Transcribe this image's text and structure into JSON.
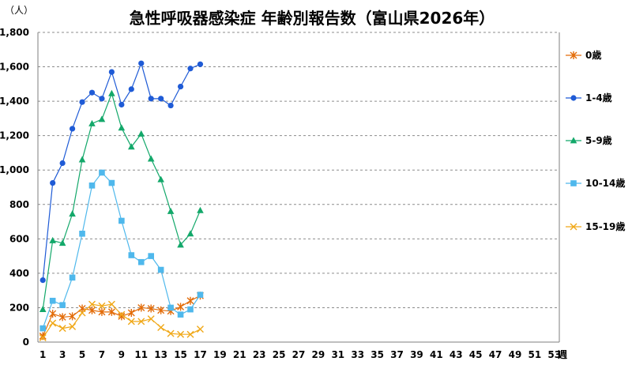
{
  "chart_data": {
    "type": "line",
    "title": "急性呼吸器感染症 年齢別報告数（富山県2026年）",
    "y_unit_label": "（人）",
    "x_unit_label": "週",
    "ylim": [
      0,
      1800
    ],
    "y_ticks": [
      "0",
      "200",
      "400",
      "600",
      "800",
      "1,000",
      "1,200",
      "1,400",
      "1,600",
      "1,800"
    ],
    "x_ticks": [
      1,
      3,
      5,
      7,
      9,
      11,
      13,
      15,
      17,
      19,
      21,
      23,
      25,
      27,
      29,
      31,
      33,
      35,
      37,
      39,
      41,
      43,
      45,
      47,
      49,
      51,
      53
    ],
    "x_range": [
      1,
      53
    ],
    "grid": "horizontal dashed",
    "legend_position": "right",
    "series": [
      {
        "name": "0歳",
        "color": "#E36C09",
        "marker": "asterisk",
        "x": [
          1,
          2,
          3,
          4,
          5,
          6,
          7,
          8,
          9,
          10,
          11,
          12,
          13,
          14,
          15,
          16,
          17
        ],
        "values": [
          35,
          165,
          145,
          150,
          195,
          185,
          175,
          175,
          150,
          170,
          200,
          195,
          185,
          180,
          205,
          240,
          270
        ]
      },
      {
        "name": "1-4歳",
        "color": "#1F5BD6",
        "marker": "circle",
        "x": [
          1,
          2,
          3,
          4,
          5,
          6,
          7,
          8,
          9,
          10,
          11,
          12,
          13,
          14,
          15,
          16,
          17
        ],
        "values": [
          360,
          925,
          1040,
          1240,
          1395,
          1450,
          1415,
          1570,
          1380,
          1470,
          1620,
          1415,
          1415,
          1375,
          1485,
          1590,
          1615
        ]
      },
      {
        "name": "5-9歳",
        "color": "#13A86A",
        "marker": "triangle",
        "x": [
          1,
          2,
          3,
          4,
          5,
          6,
          7,
          8,
          9,
          10,
          11,
          12,
          13,
          14,
          15,
          16,
          17
        ],
        "values": [
          190,
          590,
          575,
          745,
          1060,
          1270,
          1295,
          1445,
          1245,
          1135,
          1210,
          1065,
          945,
          760,
          565,
          630,
          765
        ]
      },
      {
        "name": "10-14歳",
        "color": "#4FB8EC",
        "marker": "square",
        "x": [
          1,
          2,
          3,
          4,
          5,
          6,
          7,
          8,
          9,
          10,
          11,
          12,
          13,
          14,
          15,
          16,
          17
        ],
        "values": [
          80,
          240,
          215,
          375,
          630,
          910,
          985,
          925,
          705,
          505,
          465,
          500,
          420,
          200,
          160,
          190,
          275
        ]
      },
      {
        "name": "15-19歳",
        "color": "#F0A818",
        "marker": "x",
        "x": [
          1,
          2,
          3,
          4,
          5,
          6,
          7,
          8,
          9,
          10,
          11,
          12,
          13,
          14,
          15,
          16,
          17
        ],
        "values": [
          25,
          110,
          80,
          90,
          170,
          220,
          210,
          220,
          160,
          120,
          120,
          135,
          85,
          50,
          45,
          45,
          75
        ]
      }
    ]
  }
}
